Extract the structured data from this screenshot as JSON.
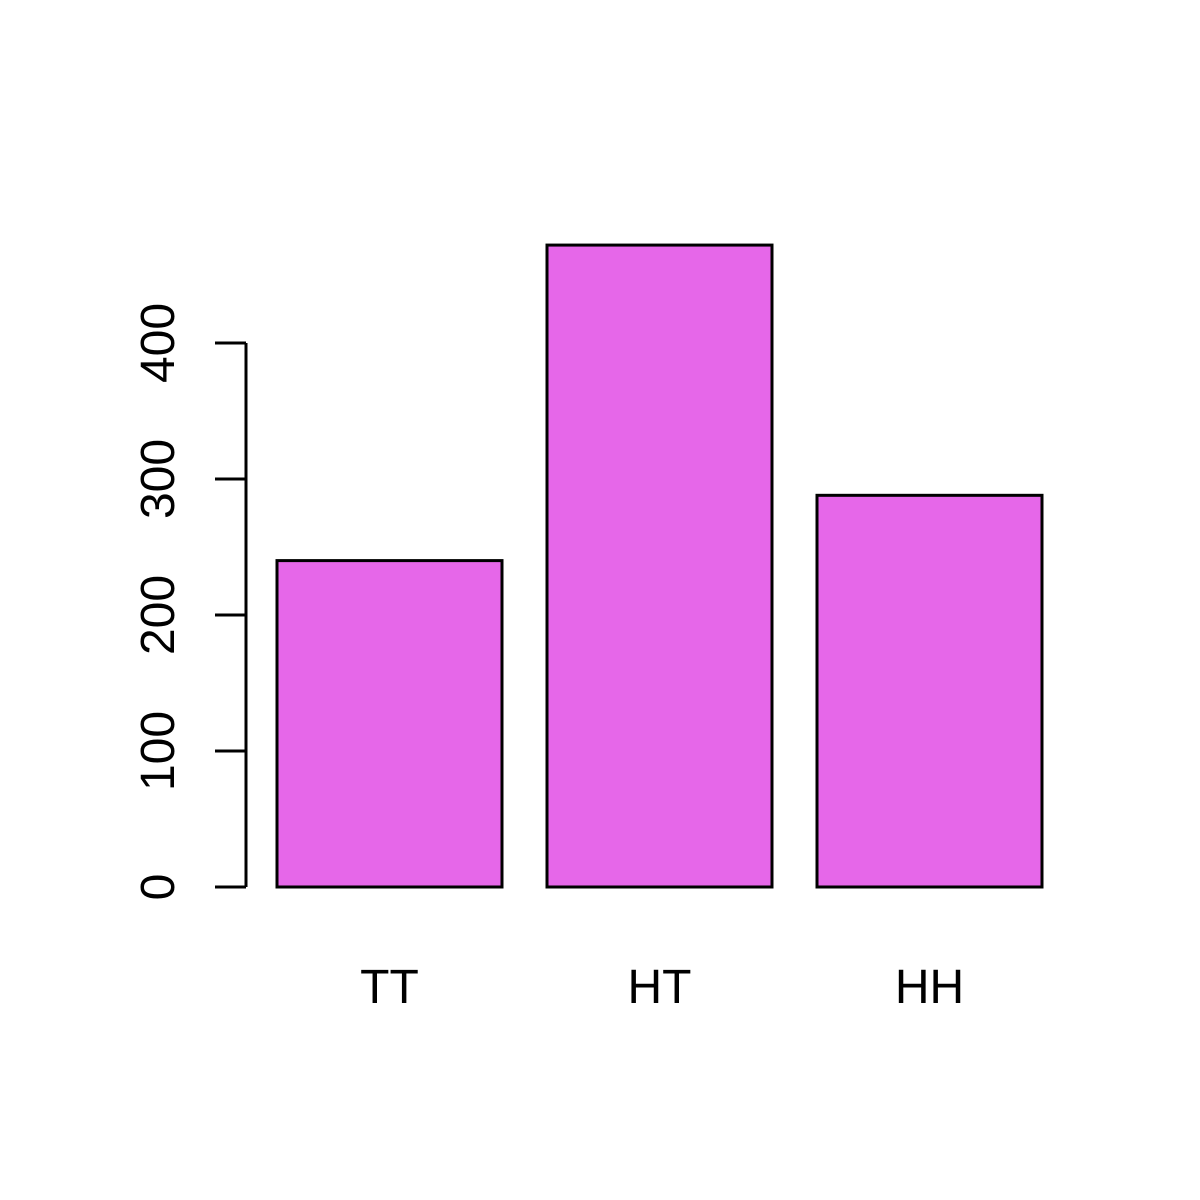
{
  "chart_data": {
    "type": "bar",
    "categories": [
      "TT",
      "HT",
      "HH"
    ],
    "values": [
      240,
      472,
      288
    ],
    "title": "",
    "xlabel": "",
    "ylabel": "",
    "ylim": [
      0,
      472
    ],
    "yticks": [
      0,
      100,
      200,
      300,
      400
    ],
    "ytick_labels": [
      "0",
      "100",
      "200",
      "300",
      "400"
    ],
    "grid": false,
    "legend": "none",
    "bar_color": "#E667E9",
    "border_color": "#000000"
  }
}
